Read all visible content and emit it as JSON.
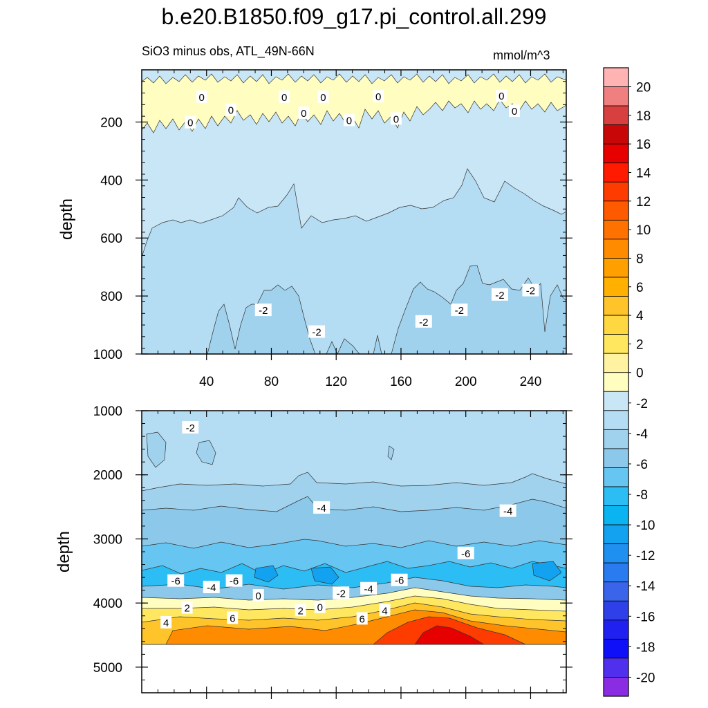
{
  "title": "b.e20.B1850.f09_g17.pi_control.all.299",
  "subtitle": "SiO3 minus obs, ATL_49N-66N",
  "units": "mmol/m^3",
  "chart_data": [
    {
      "type": "heatmap",
      "panel": "upper",
      "ylabel": "depth",
      "xlabel": "",
      "xlim": [
        0,
        262
      ],
      "ylim": [
        1000,
        20
      ],
      "x_ticks": [
        "40",
        "80",
        "120",
        "160",
        "200",
        "240"
      ],
      "x_tick_values": [
        40,
        80,
        120,
        160,
        200,
        240
      ],
      "y_ticks": [
        "200",
        "400",
        "600",
        "800",
        "1000"
      ],
      "y_tick_values": [
        200,
        400,
        600,
        800,
        1000
      ],
      "contour_labels": [
        {
          "text": "0",
          "x": 37,
          "y": 115
        },
        {
          "text": "0",
          "x": 88,
          "y": 115
        },
        {
          "text": "0",
          "x": 112,
          "y": 115
        },
        {
          "text": "0",
          "x": 146,
          "y": 113
        },
        {
          "text": "0",
          "x": 222,
          "y": 111
        },
        {
          "text": "0",
          "x": 55,
          "y": 160
        },
        {
          "text": "0",
          "x": 100,
          "y": 170
        },
        {
          "text": "0",
          "x": 128,
          "y": 195
        },
        {
          "text": "0",
          "x": 157,
          "y": 190
        },
        {
          "text": "0",
          "x": 230,
          "y": 163
        },
        {
          "text": "0",
          "x": 30,
          "y": 203
        },
        {
          "text": "-2",
          "x": 75,
          "y": 850
        },
        {
          "text": "-2",
          "x": 108,
          "y": 925
        },
        {
          "text": "-2",
          "x": 174,
          "y": 890
        },
        {
          "text": "-2",
          "x": 196,
          "y": 850
        },
        {
          "text": "-2",
          "x": 221,
          "y": 797
        },
        {
          "text": "-2",
          "x": 240,
          "y": 782
        }
      ]
    },
    {
      "type": "heatmap",
      "panel": "lower",
      "ylabel": "depth",
      "xlabel": "",
      "xlim": [
        0,
        262
      ],
      "ylim": [
        5400,
        1000
      ],
      "y_ticks": [
        "1000",
        "2000",
        "3000",
        "4000",
        "5000"
      ],
      "y_tick_values": [
        1000,
        2000,
        3000,
        4000,
        5000
      ],
      "contour_labels": [
        {
          "text": "-2",
          "x": 30,
          "y": 1270
        },
        {
          "text": "-4",
          "x": 111,
          "y": 2520
        },
        {
          "text": "-4",
          "x": 226,
          "y": 2570
        },
        {
          "text": "-6",
          "x": 200,
          "y": 3230
        },
        {
          "text": "-6",
          "x": 21,
          "y": 3660
        },
        {
          "text": "-6",
          "x": 57,
          "y": 3660
        },
        {
          "text": "-4",
          "x": 43,
          "y": 3760
        },
        {
          "text": "-6",
          "x": 159,
          "y": 3650
        },
        {
          "text": "-4",
          "x": 140,
          "y": 3780
        },
        {
          "text": "-2",
          "x": 123,
          "y": 3850
        },
        {
          "text": "0",
          "x": 72,
          "y": 3890
        },
        {
          "text": "0",
          "x": 110,
          "y": 4070
        },
        {
          "text": "2",
          "x": 28,
          "y": 4080
        },
        {
          "text": "2",
          "x": 98,
          "y": 4120
        },
        {
          "text": "4",
          "x": 15,
          "y": 4310
        },
        {
          "text": "6",
          "x": 56,
          "y": 4240
        },
        {
          "text": "6",
          "x": 136,
          "y": 4250
        },
        {
          "text": "4",
          "x": 150,
          "y": 4120
        }
      ]
    }
  ],
  "colorbar": {
    "labels": [
      "20",
      "18",
      "16",
      "14",
      "12",
      "10",
      "8",
      "6",
      "4",
      "2",
      "0",
      "-2",
      "-4",
      "-6",
      "-8",
      "-10",
      "-12",
      "-14",
      "-16",
      "-18",
      "-20"
    ],
    "colors": [
      "#ffb3b3",
      "#f08080",
      "#d84040",
      "#c80808",
      "#e60000",
      "#ff1a00",
      "#ff3c00",
      "#ff5a00",
      "#ff7200",
      "#ff8c00",
      "#ffa000",
      "#ffb000",
      "#ffc42a",
      "#ffd740",
      "#ffe760",
      "#fff2a0",
      "#fffdbf",
      "#c8e6f6",
      "#b4dcf2",
      "#a0d2ee",
      "#8cc8ea",
      "#66c6f1",
      "#2cbdf5",
      "#0ab4f0",
      "#13a2f0",
      "#2090f0",
      "#2a7af0",
      "#3a64ea",
      "#3040e8",
      "#2020f0",
      "#1010f8",
      "#5030ec",
      "#8a2ce2"
    ]
  }
}
